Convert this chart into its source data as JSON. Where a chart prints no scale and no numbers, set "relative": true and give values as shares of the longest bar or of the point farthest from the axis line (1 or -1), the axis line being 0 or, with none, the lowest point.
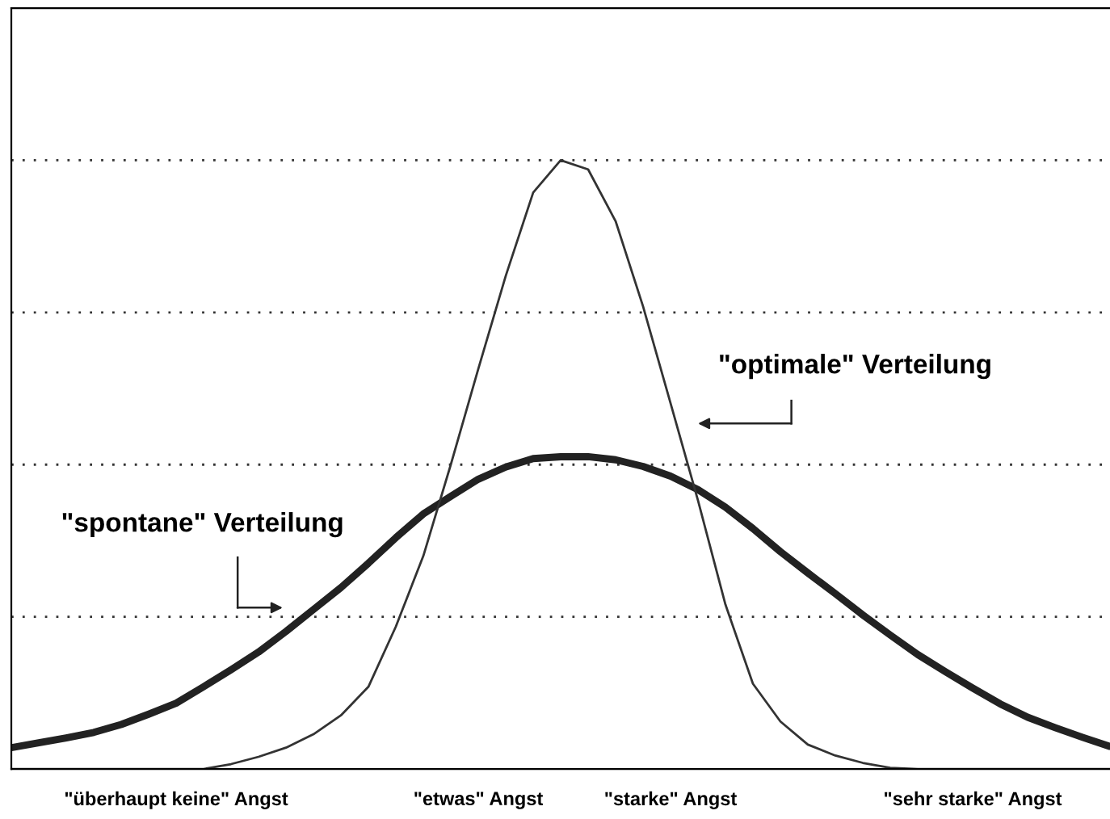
{
  "chart_data": {
    "type": "line",
    "relative": true,
    "grid": "y",
    "marker": "none",
    "line_style": "solid",
    "categories": [
      null,
      null,
      null,
      null,
      null,
      null,
      "\"überhaupt keine\" Angst",
      null,
      null,
      null,
      null,
      null,
      null,
      null,
      null,
      null,
      null,
      "\"etwas\" Angst",
      null,
      null,
      null,
      null,
      null,
      null,
      "\"starke\" Angst",
      null,
      null,
      null,
      null,
      null,
      null,
      null,
      null,
      null,
      null,
      "\"sehr starke\" Angst",
      null,
      null,
      null,
      null,
      null
    ],
    "series": [
      {
        "color": "#222222",
        "values": [
          0.035,
          0.043,
          0.051,
          0.06,
          0.073,
          0.09,
          0.108,
          0.135,
          0.163,
          0.192,
          0.226,
          0.262,
          0.298,
          0.338,
          0.38,
          0.419,
          0.448,
          0.476,
          0.496,
          0.51,
          0.513,
          0.513,
          0.508,
          0.497,
          0.481,
          0.459,
          0.43,
          0.395,
          0.357,
          0.322,
          0.288,
          0.253,
          0.22,
          0.188,
          0.16,
          0.133,
          0.107,
          0.085,
          0.068,
          0.052,
          0.037
        ]
      },
      {
        "color": "#333333",
        "values": [
          0,
          0,
          0,
          0,
          0,
          0,
          0,
          0,
          0.008,
          0.02,
          0.035,
          0.057,
          0.088,
          0.135,
          0.234,
          0.35,
          0.5,
          0.657,
          0.81,
          0.947,
          1,
          0.985,
          0.9,
          0.76,
          0.601,
          0.441,
          0.27,
          0.14,
          0.078,
          0.04,
          0.022,
          0.01,
          0.002,
          0,
          0,
          0,
          0,
          0,
          0,
          0,
          0
        ]
      }
    ],
    "annotations": [
      "\"optimale\" Verteilung",
      "\"spontane\" Verteilung"
    ]
  }
}
